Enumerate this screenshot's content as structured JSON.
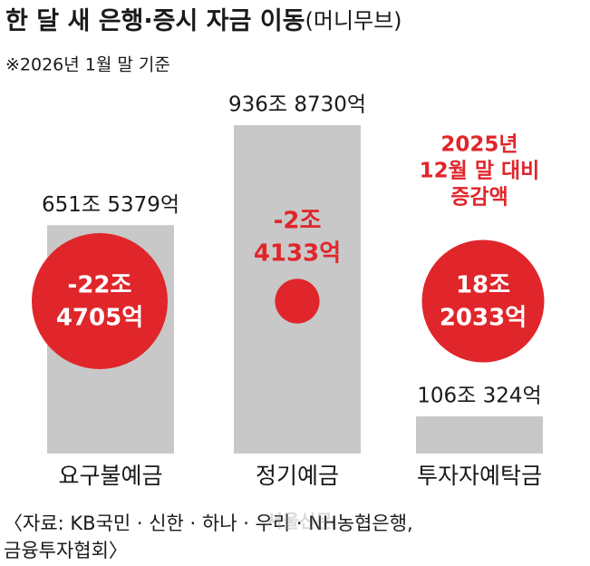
{
  "chart_data": {
    "type": "bar",
    "title": "한 달 새 은행·증시 자금 이동",
    "title_note": "(머니무브)",
    "subtitle": "※2026년 1월 말 기준",
    "categories": [
      "요구불예금",
      "정기예금",
      "투자자예탁금"
    ],
    "values": [
      6515379,
      9368730,
      1060324
    ],
    "value_labels": [
      "651조 5379억",
      "936조 8730억",
      "106조 324억"
    ],
    "color": "#c8c8c8",
    "changes": [
      -224705,
      -24133,
      182033
    ],
    "change_labels": [
      [
        "-22조",
        "4705억"
      ],
      [
        "-2조",
        "4133억"
      ],
      [
        "18조",
        "2033억"
      ]
    ],
    "change_color": "#e0262b",
    "annotation": [
      "2025년",
      "12월 말 대비",
      "증감액"
    ],
    "source": [
      "〈자료: KB국민 · 신한 · 하나 · 우리 · NH농협은행,",
      "금융투자협회〉"
    ],
    "watermark": "서울신문"
  }
}
